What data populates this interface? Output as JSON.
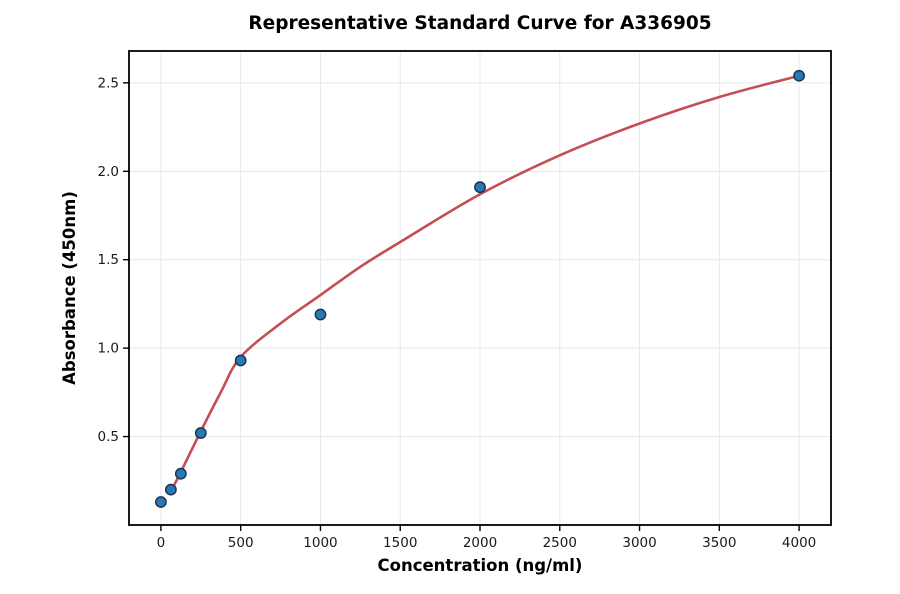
{
  "chart_data": {
    "type": "scatter",
    "title": "Representative Standard Curve for A336905",
    "xlabel": "Concentration (ng/ml)",
    "ylabel": "Absorbance (450nm)",
    "xlim": [
      -200,
      4200
    ],
    "ylim": [
      0,
      2.68
    ],
    "x_ticks": [
      0,
      500,
      1000,
      1500,
      2000,
      2500,
      3000,
      3500,
      4000
    ],
    "y_ticks": [
      0.5,
      1.0,
      1.5,
      2.0,
      2.5
    ],
    "grid": true,
    "legend": "none",
    "series": [
      {
        "name": "standard-points",
        "type": "scatter",
        "x": [
          0,
          62.5,
          125,
          250,
          500,
          1000,
          2000,
          4000
        ],
        "y": [
          0.13,
          0.2,
          0.29,
          0.52,
          0.93,
          1.19,
          1.91,
          2.54
        ]
      },
      {
        "name": "fitted-curve",
        "type": "line",
        "x": [
          62.5,
          125,
          250,
          375,
          500,
          750,
          1000,
          1250,
          1500,
          2000,
          2500,
          3000,
          3500,
          4000
        ],
        "y": [
          0.19,
          0.3,
          0.53,
          0.75,
          0.95,
          1.14,
          1.3,
          1.46,
          1.6,
          1.87,
          2.09,
          2.27,
          2.42,
          2.54
        ]
      }
    ],
    "colors": {
      "curve": "#c44e52",
      "point_fill": "#2878b5",
      "point_edge": "#16324c",
      "grid": "#e8e8e8",
      "spine": "#000000",
      "background": "#ffffff"
    }
  }
}
